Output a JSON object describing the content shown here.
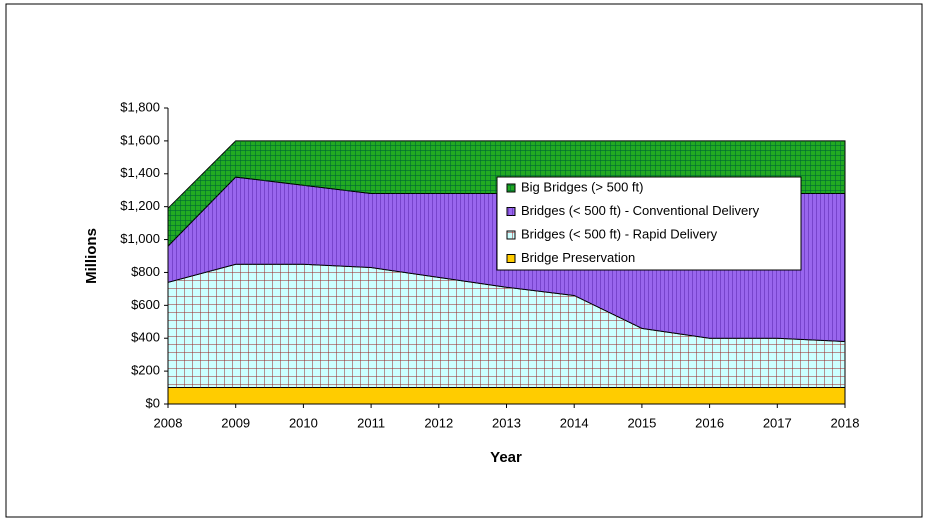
{
  "chart_data": {
    "type": "stacked-area",
    "x_label": "Year",
    "y_label": "Millions",
    "x": [
      2008,
      2009,
      2010,
      2011,
      2012,
      2013,
      2014,
      2015,
      2016,
      2017,
      2018
    ],
    "xlim": [
      2008,
      2018
    ],
    "xticks": [
      2008,
      2009,
      2010,
      2011,
      2012,
      2013,
      2014,
      2015,
      2016,
      2017,
      2018
    ],
    "ylim": [
      0,
      1800
    ],
    "yticks": [
      {
        "value": 0,
        "label": "$0"
      },
      {
        "value": 200,
        "label": "$200"
      },
      {
        "value": 400,
        "label": "$400"
      },
      {
        "value": 600,
        "label": "$600"
      },
      {
        "value": 800,
        "label": "$800"
      },
      {
        "value": 1000,
        "label": "$1,000"
      },
      {
        "value": 1200,
        "label": "$1,200"
      },
      {
        "value": 1400,
        "label": "$1,400"
      },
      {
        "value": 1600,
        "label": "$1,600"
      },
      {
        "value": 1800,
        "label": "$1,800"
      }
    ],
    "series": [
      {
        "name": "Big Bridges (> 500 ft)",
        "color": "#22aa22",
        "values": [
          230,
          220,
          270,
          320,
          320,
          320,
          320,
          320,
          320,
          320,
          320
        ]
      },
      {
        "name": "Bridges (< 500 ft) - Conventional Delivery",
        "color": "#9966ee",
        "values": [
          220,
          530,
          480,
          450,
          510,
          570,
          620,
          820,
          880,
          880,
          900
        ]
      },
      {
        "name": "Bridges (< 500 ft) - Rapid Delivery",
        "color": "#ccffff",
        "values": [
          640,
          750,
          750,
          730,
          670,
          610,
          560,
          360,
          300,
          300,
          280
        ]
      },
      {
        "name": "Bridge Preservation",
        "color": "#ffcc00",
        "values": [
          100,
          100,
          100,
          100,
          100,
          100,
          100,
          100,
          100,
          100,
          100
        ]
      }
    ],
    "legend": "upper-right"
  }
}
